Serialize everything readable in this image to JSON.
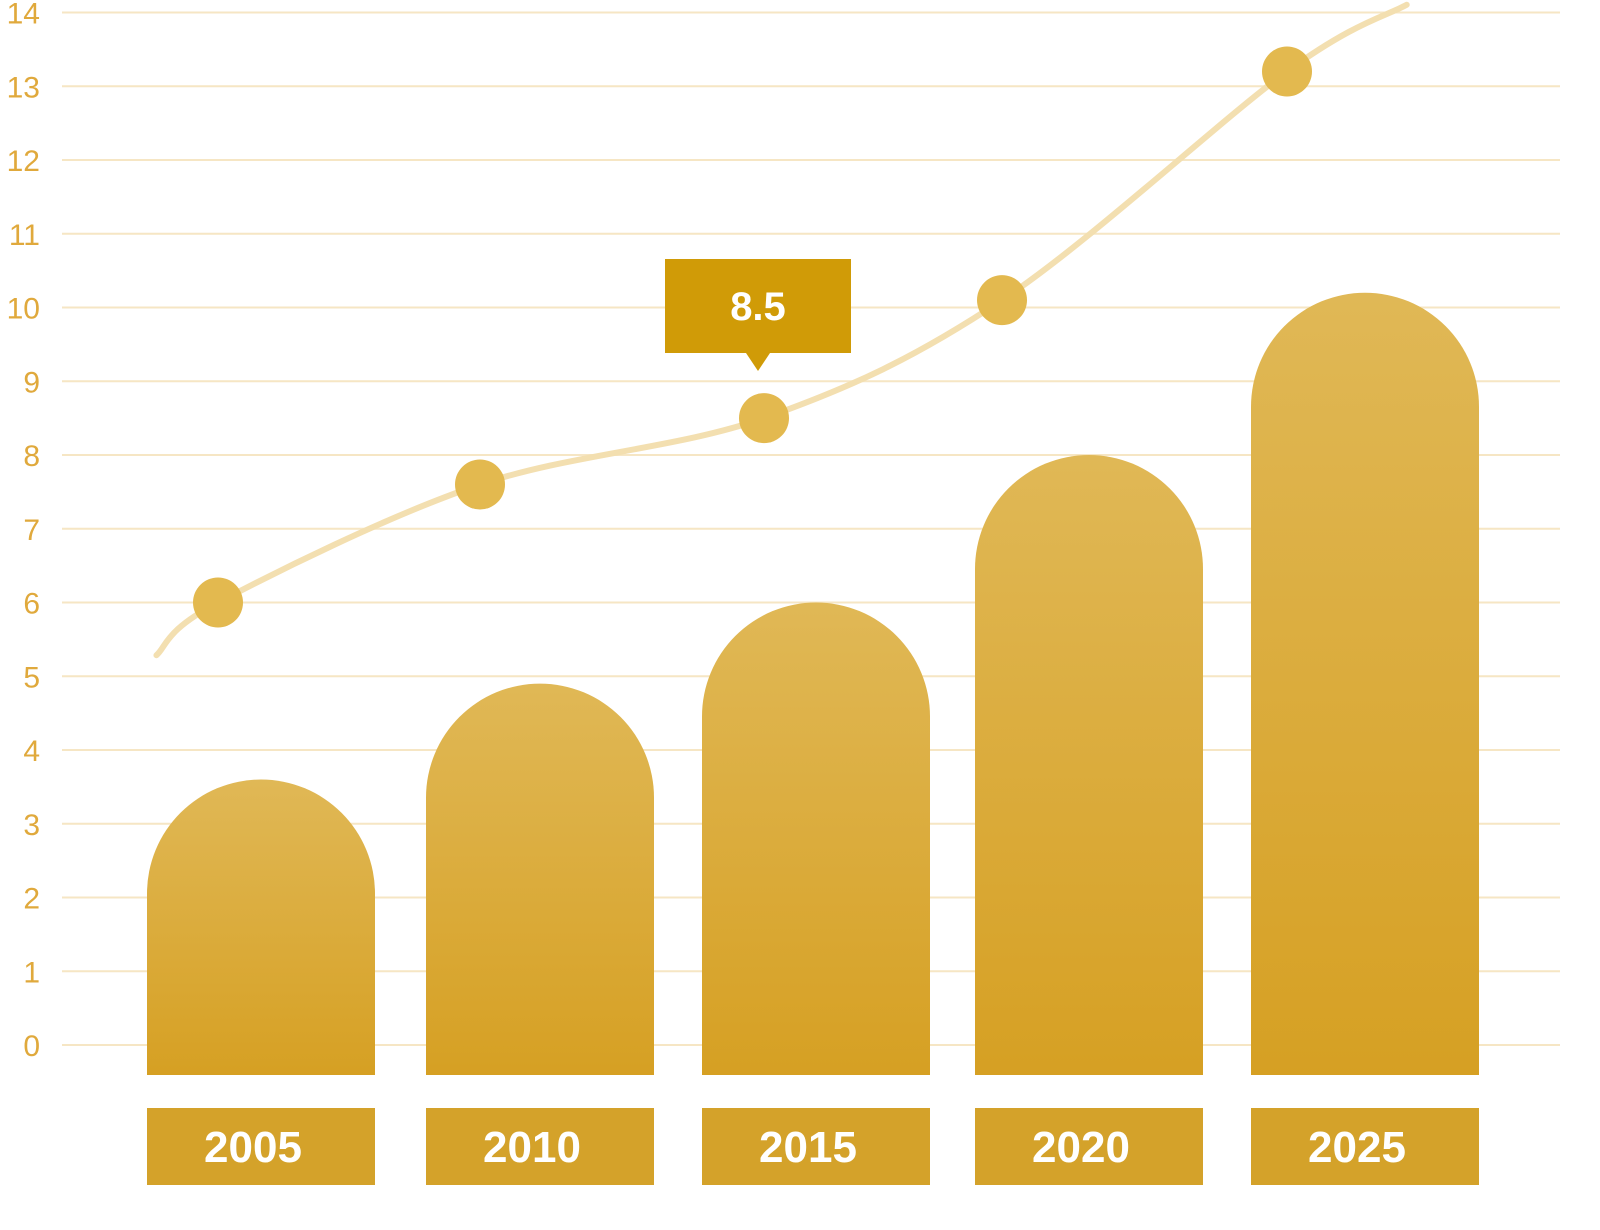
{
  "chart_data": {
    "type": "bar",
    "categories": [
      "2005",
      "2010",
      "2015",
      "2020",
      "2025"
    ],
    "series": [
      {
        "type": "bar",
        "values": [
          3.6,
          4.9,
          6.0,
          8.0,
          10.2
        ]
      },
      {
        "type": "line",
        "values": [
          6.0,
          7.6,
          8.5,
          10.1,
          13.2
        ]
      }
    ],
    "yticks": [
      "0",
      "1",
      "2",
      "3",
      "4",
      "5",
      "6",
      "7",
      "8",
      "9",
      "10",
      "11",
      "12",
      "13",
      "14"
    ],
    "ylim": [
      0,
      14
    ],
    "grid": true,
    "callout": {
      "category": "2015",
      "label": "8.5"
    },
    "colors": {
      "bar_top": "#e0b856",
      "bar_bottom": "#d6a023",
      "category_box": "#d4a22a",
      "line": "#f3dfb0",
      "marker": "#e3b94f",
      "callout": "#d09b07",
      "grid": "#f6e6c4",
      "tick_text": "#e0a93c"
    }
  }
}
